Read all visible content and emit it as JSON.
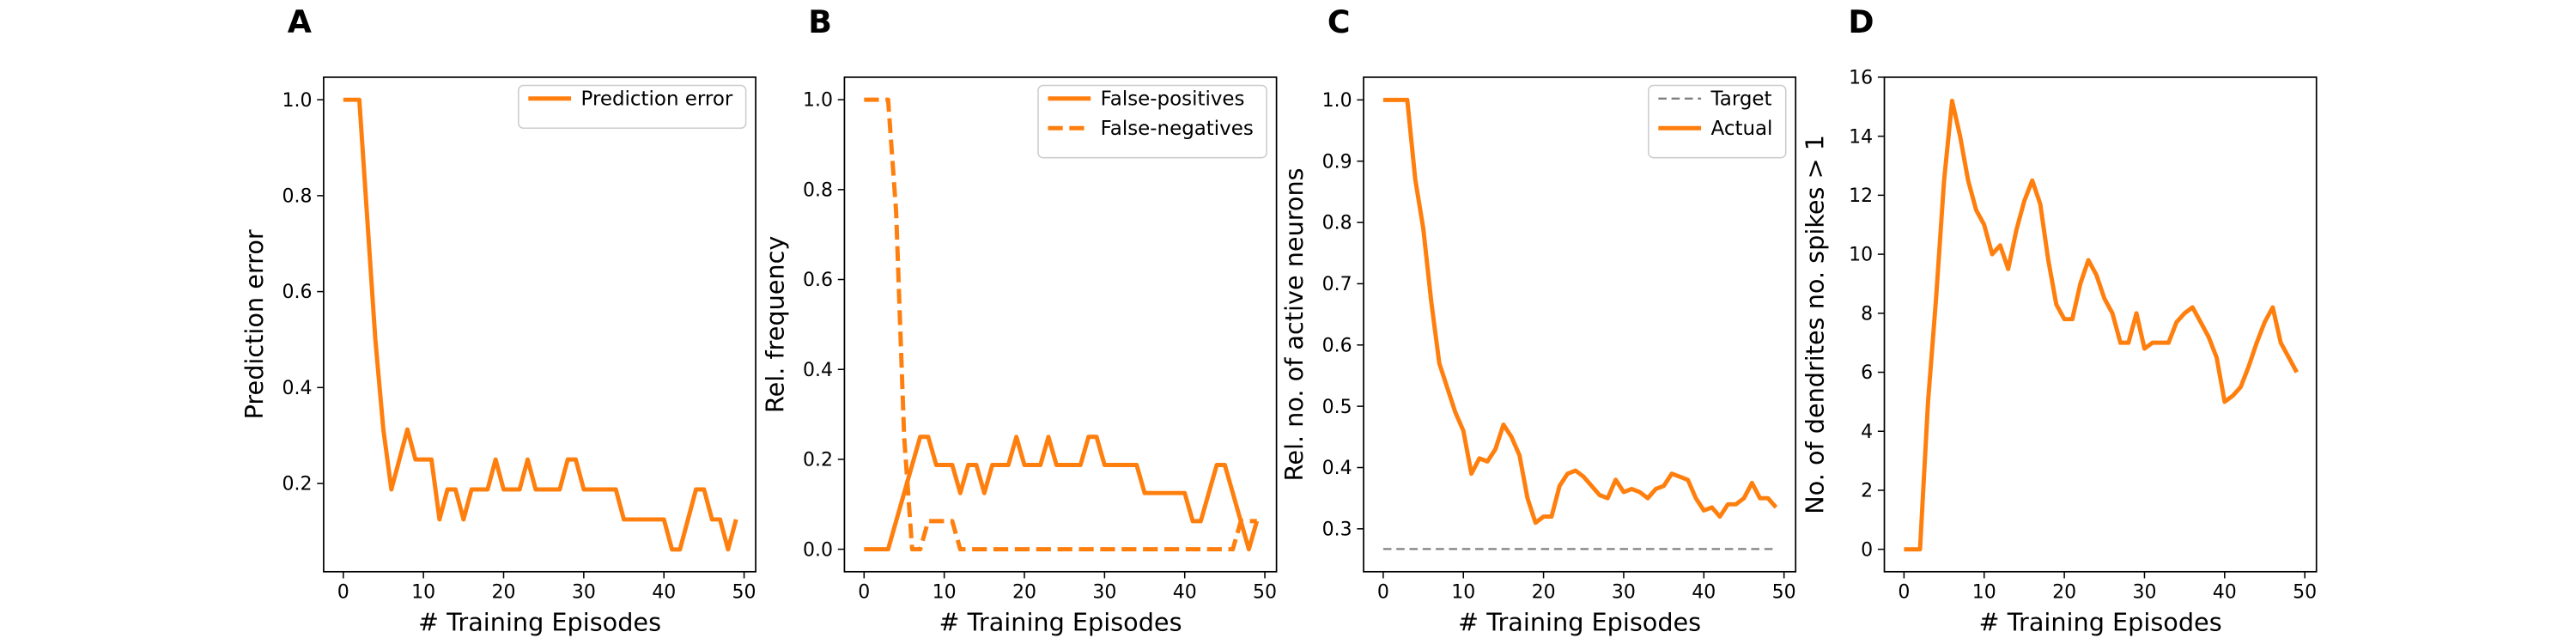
{
  "chart_data": [
    {
      "type": "line",
      "panel_label": "A",
      "xlabel": "# Training Episodes",
      "ylabel": "Prediction error",
      "x": [
        0,
        1,
        2,
        3,
        4,
        5,
        6,
        7,
        8,
        9,
        10,
        11,
        12,
        13,
        14,
        15,
        16,
        17,
        18,
        19,
        20,
        21,
        22,
        23,
        24,
        25,
        26,
        27,
        28,
        29,
        30,
        31,
        32,
        33,
        34,
        35,
        36,
        37,
        38,
        39,
        40,
        41,
        42,
        43,
        44,
        45,
        46,
        47,
        48,
        49
      ],
      "series": [
        {
          "name": "Prediction error",
          "color": "#ff7f0e",
          "linestyle": "solid",
          "values": [
            1,
            1,
            1,
            0.75,
            0.5,
            0.3125,
            0.1875,
            0.25,
            0.3125,
            0.25,
            0.25,
            0.25,
            0.125,
            0.1875,
            0.1875,
            0.125,
            0.1875,
            0.1875,
            0.1875,
            0.25,
            0.1875,
            0.1875,
            0.1875,
            0.25,
            0.1875,
            0.1875,
            0.1875,
            0.1875,
            0.25,
            0.25,
            0.1875,
            0.1875,
            0.1875,
            0.1875,
            0.1875,
            0.125,
            0.125,
            0.125,
            0.125,
            0.125,
            0.125,
            0.0625,
            0.0625,
            0.125,
            0.1875,
            0.1875,
            0.125,
            0.125,
            0.0625,
            0.125
          ]
        }
      ],
      "xlim": [
        -2.45,
        51.45
      ],
      "xticks": [
        0,
        10,
        20,
        30,
        40,
        50
      ],
      "ylim": [
        0.016,
        1.047
      ],
      "yticks": [
        0.2,
        0.4,
        0.6,
        0.8,
        {
          "value": 1,
          "label": "1.0"
        }
      ],
      "legend": "upper right"
    },
    {
      "type": "line",
      "panel_label": "B",
      "xlabel": "# Training Episodes",
      "ylabel": "Rel. frequency",
      "x": [
        0,
        1,
        2,
        3,
        4,
        5,
        6,
        7,
        8,
        9,
        10,
        11,
        12,
        13,
        14,
        15,
        16,
        17,
        18,
        19,
        20,
        21,
        22,
        23,
        24,
        25,
        26,
        27,
        28,
        29,
        30,
        31,
        32,
        33,
        34,
        35,
        36,
        37,
        38,
        39,
        40,
        41,
        42,
        43,
        44,
        45,
        46,
        47,
        48,
        49
      ],
      "series": [
        {
          "name": "False-positives",
          "color": "#ff7f0e",
          "linestyle": "solid",
          "values": [
            0,
            0,
            0,
            0,
            0.0625,
            0.125,
            0.1875,
            0.25,
            0.25,
            0.1875,
            0.1875,
            0.1875,
            0.125,
            0.1875,
            0.1875,
            0.125,
            0.1875,
            0.1875,
            0.1875,
            0.25,
            0.1875,
            0.1875,
            0.1875,
            0.25,
            0.1875,
            0.1875,
            0.1875,
            0.1875,
            0.25,
            0.25,
            0.1875,
            0.1875,
            0.1875,
            0.1875,
            0.1875,
            0.125,
            0.125,
            0.125,
            0.125,
            0.125,
            0.125,
            0.0625,
            0.0625,
            0.125,
            0.1875,
            0.1875,
            0.125,
            0.0625,
            0,
            0.0625
          ]
        },
        {
          "name": "False-negatives",
          "color": "#ff7f0e",
          "linestyle": "dashed",
          "values": [
            1,
            1,
            1,
            1,
            0.75,
            0.25,
            0,
            0,
            0.0625,
            0.0625,
            0.0625,
            0.0625,
            0,
            0,
            0,
            0,
            0,
            0,
            0,
            0,
            0,
            0,
            0,
            0,
            0,
            0,
            0,
            0,
            0,
            0,
            0,
            0,
            0,
            0,
            0,
            0,
            0,
            0,
            0,
            0,
            0,
            0,
            0,
            0,
            0,
            0,
            0,
            0.0625,
            0.0625,
            0.0625
          ]
        }
      ],
      "xlim": [
        -2.45,
        51.45
      ],
      "xticks": [
        0,
        10,
        20,
        30,
        40,
        50
      ],
      "ylim": [
        -0.05,
        1.05
      ],
      "yticks": [
        {
          "value": 0,
          "label": "0.0"
        },
        0.2,
        0.4,
        0.6,
        0.8,
        {
          "value": 1,
          "label": "1.0"
        }
      ],
      "legend": "upper right"
    },
    {
      "type": "line",
      "panel_label": "C",
      "xlabel": "# Training Episodes",
      "ylabel": "Rel. no. of active neurons",
      "x": [
        0,
        1,
        2,
        3,
        4,
        5,
        6,
        7,
        8,
        9,
        10,
        11,
        12,
        13,
        14,
        15,
        16,
        17,
        18,
        19,
        20,
        21,
        22,
        23,
        24,
        25,
        26,
        27,
        28,
        29,
        30,
        31,
        32,
        33,
        34,
        35,
        36,
        37,
        38,
        39,
        40,
        41,
        42,
        43,
        44,
        45,
        46,
        47,
        48,
        49
      ],
      "series": [
        {
          "name": "Target",
          "color": "#808080",
          "linestyle": "dashed",
          "values": [
            0.267,
            0.267,
            0.267,
            0.267,
            0.267,
            0.267,
            0.267,
            0.267,
            0.267,
            0.267,
            0.267,
            0.267,
            0.267,
            0.267,
            0.267,
            0.267,
            0.267,
            0.267,
            0.267,
            0.267,
            0.267,
            0.267,
            0.267,
            0.267,
            0.267,
            0.267,
            0.267,
            0.267,
            0.267,
            0.267,
            0.267,
            0.267,
            0.267,
            0.267,
            0.267,
            0.267,
            0.267,
            0.267,
            0.267,
            0.267,
            0.267,
            0.267,
            0.267,
            0.267,
            0.267,
            0.267,
            0.267,
            0.267,
            0.267,
            0.267
          ]
        },
        {
          "name": "Actual",
          "color": "#ff7f0e",
          "linestyle": "solid",
          "values": [
            1,
            1,
            1,
            1,
            0.87,
            0.79,
            0.67,
            0.57,
            0.53,
            0.49,
            0.46,
            0.39,
            0.415,
            0.41,
            0.43,
            0.47,
            0.45,
            0.42,
            0.35,
            0.31,
            0.32,
            0.32,
            0.37,
            0.39,
            0.395,
            0.385,
            0.37,
            0.355,
            0.35,
            0.38,
            0.36,
            0.365,
            0.36,
            0.35,
            0.365,
            0.37,
            0.39,
            0.385,
            0.38,
            0.35,
            0.33,
            0.335,
            0.32,
            0.34,
            0.34,
            0.35,
            0.375,
            0.35,
            0.35,
            0.335
          ]
        }
      ],
      "xlim": [
        -2.45,
        51.45
      ],
      "xticks": [
        0,
        10,
        20,
        30,
        40,
        50
      ],
      "ylim": [
        0.23,
        1.037
      ],
      "yticks": [
        0.3,
        0.4,
        0.5,
        0.6,
        0.7,
        0.8,
        0.9,
        {
          "value": 1,
          "label": "1.0"
        }
      ],
      "legend": "upper right"
    },
    {
      "type": "line",
      "panel_label": "D",
      "xlabel": "# Training Episodes",
      "ylabel": "No. of dendrites no. spikes > 1",
      "x": [
        0,
        1,
        2,
        3,
        4,
        5,
        6,
        7,
        8,
        9,
        10,
        11,
        12,
        13,
        14,
        15,
        16,
        17,
        18,
        19,
        20,
        21,
        22,
        23,
        24,
        25,
        26,
        27,
        28,
        29,
        30,
        31,
        32,
        33,
        34,
        35,
        36,
        37,
        38,
        39,
        40,
        41,
        42,
        43,
        44,
        45,
        46,
        47,
        48,
        49
      ],
      "series": [
        {
          "name": null,
          "color": "#ff7f0e",
          "linestyle": "solid",
          "values": [
            0,
            0,
            0,
            5,
            8.5,
            12.5,
            15.2,
            14,
            12.5,
            11.5,
            11,
            10,
            10.3,
            9.5,
            10.8,
            11.8,
            12.5,
            11.7,
            9.8,
            8.3,
            7.8,
            7.8,
            9,
            9.8,
            9.3,
            8.5,
            8,
            7,
            7,
            8,
            6.8,
            7,
            7,
            7,
            7.7,
            8,
            8.2,
            7.7,
            7.2,
            6.5,
            5,
            5.2,
            5.5,
            6.2,
            7,
            7.7,
            8.2,
            7,
            6.5,
            6
          ]
        }
      ],
      "xlim": [
        -2.45,
        51.45
      ],
      "xticks": [
        0,
        10,
        20,
        30,
        40,
        50
      ],
      "ylim": [
        -0.76,
        16
      ],
      "yticks": [
        0,
        2,
        4,
        6,
        8,
        10,
        12,
        14,
        16
      ],
      "legend": null
    }
  ]
}
